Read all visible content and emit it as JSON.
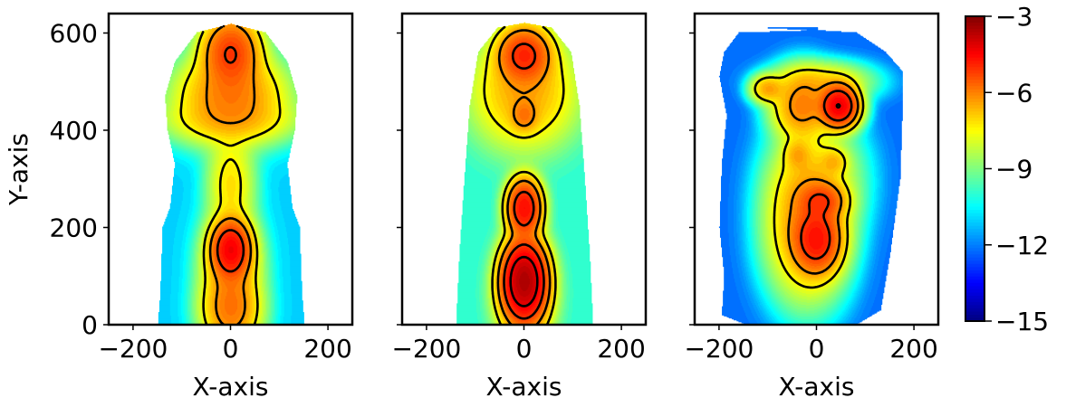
{
  "chart_data": {
    "type": "heatmap",
    "panel_count": 3,
    "shared": {
      "xlim": [
        -250,
        250
      ],
      "ylim": [
        0,
        640
      ],
      "x_ticks": [
        -200,
        0,
        200
      ],
      "x_tick_labels": [
        "−200",
        "0",
        "200"
      ],
      "y_ticks": [
        0,
        200,
        400,
        600
      ],
      "y_tick_labels": [
        "0",
        "200",
        "400",
        "600"
      ],
      "colormap": "jet",
      "colorbar": {
        "range": [
          -15,
          -3
        ],
        "ticks": [
          -3,
          -6,
          -9,
          -12,
          -15
        ],
        "tick_labels": [
          "−3",
          "−6",
          "−9",
          "−12",
          "−15"
        ]
      },
      "contour_color": "#000000"
    },
    "panels": [
      {
        "xlabel": "X-axis",
        "ylabel": "Y-axis",
        "support": [
          [
            0,
            -150
          ],
          [
            60,
            -145
          ],
          [
            200,
            -140
          ],
          [
            240,
            -125
          ],
          [
            330,
            -115
          ],
          [
            400,
            -130
          ],
          [
            470,
            -135
          ],
          [
            540,
            -115
          ],
          [
            600,
            -70
          ],
          [
            618,
            0
          ],
          [
            600,
            70
          ],
          [
            540,
            115
          ],
          [
            470,
            135
          ],
          [
            400,
            130
          ],
          [
            330,
            115
          ],
          [
            240,
            125
          ],
          [
            200,
            140
          ],
          [
            60,
            145
          ],
          [
            0,
            150
          ]
        ],
        "background_value": -11,
        "blobs": [
          {
            "x": 0,
            "y": 560,
            "sx": 30,
            "sy": 38,
            "peak": -5.2
          },
          {
            "x": 0,
            "y": 470,
            "sx": 55,
            "sy": 45,
            "peak": -6.0
          },
          {
            "x": 0,
            "y": 420,
            "sx": 75,
            "sy": 25,
            "peak": -7.4
          },
          {
            "x": 0,
            "y": 290,
            "sx": 25,
            "sy": 55,
            "peak": -7.2
          },
          {
            "x": 0,
            "y": 155,
            "sx": 20,
            "sy": 30,
            "peak": -4.5
          },
          {
            "x": 0,
            "y": 120,
            "sx": 30,
            "sy": 55,
            "peak": -6.4
          },
          {
            "x": 0,
            "y": 30,
            "sx": 30,
            "sy": 40,
            "peak": -6.0
          }
        ]
      },
      {
        "xlabel": "X-axis",
        "ylabel": "",
        "support": [
          [
            0,
            -140
          ],
          [
            150,
            -133
          ],
          [
            300,
            -123
          ],
          [
            450,
            -112
          ],
          [
            560,
            -95
          ],
          [
            610,
            -55
          ],
          [
            620,
            0
          ],
          [
            610,
            55
          ],
          [
            560,
            95
          ],
          [
            450,
            112
          ],
          [
            300,
            123
          ],
          [
            150,
            133
          ],
          [
            0,
            140
          ]
        ],
        "background_value": -10,
        "blobs": [
          {
            "x": 0,
            "y": 555,
            "sx": 28,
            "sy": 30,
            "peak": -5.0
          },
          {
            "x": 0,
            "y": 480,
            "sx": 55,
            "sy": 60,
            "peak": -6.5
          },
          {
            "x": 0,
            "y": 430,
            "sx": 15,
            "sy": 18,
            "peak": -6.2
          },
          {
            "x": 0,
            "y": 240,
            "sx": 18,
            "sy": 30,
            "peak": -4.6
          },
          {
            "x": 0,
            "y": 90,
            "sx": 22,
            "sy": 40,
            "peak": -3.6
          },
          {
            "x": 0,
            "y": 60,
            "sx": 30,
            "sy": 55,
            "peak": -6.3
          }
        ]
      },
      {
        "xlabel": "X-axis",
        "ylabel": "",
        "support": [
          [
            0,
            -145
          ],
          [
            20,
            -195
          ],
          [
            100,
            -190
          ],
          [
            200,
            -200
          ],
          [
            330,
            -195
          ],
          [
            430,
            -185
          ],
          [
            510,
            -200
          ],
          [
            560,
            -190
          ],
          [
            600,
            -160
          ],
          [
            610,
            -100
          ],
          [
            605,
            0
          ],
          [
            600,
            80
          ],
          [
            560,
            140
          ],
          [
            520,
            175
          ],
          [
            450,
            175
          ],
          [
            300,
            170
          ],
          [
            150,
            150
          ],
          [
            30,
            130
          ],
          [
            0,
            80
          ]
        ],
        "background_value": -12.2,
        "blobs": [
          {
            "x": 45,
            "y": 450,
            "sx": 20,
            "sy": 22,
            "peak": -4.3
          },
          {
            "x": -100,
            "y": 485,
            "sx": 18,
            "sy": 15,
            "peak": -6.5
          },
          {
            "x": -30,
            "y": 450,
            "sx": 30,
            "sy": 35,
            "peak": -6.0
          },
          {
            "x": 10,
            "y": 500,
            "sx": 50,
            "sy": 20,
            "peak": -7.2
          },
          {
            "x": 0,
            "y": 175,
            "sx": 25,
            "sy": 35,
            "peak": -4.8
          },
          {
            "x": 10,
            "y": 255,
            "sx": 25,
            "sy": 20,
            "peak": -5.4
          },
          {
            "x": -20,
            "y": 210,
            "sx": 40,
            "sy": 75,
            "peak": -6.2
          },
          {
            "x": -40,
            "y": 350,
            "sx": 15,
            "sy": 18,
            "peak": -6.8
          },
          {
            "x": 35,
            "y": 335,
            "sx": 15,
            "sy": 15,
            "peak": -7.0
          },
          {
            "x": 0,
            "y": 300,
            "sx": 45,
            "sy": 60,
            "peak": -7.5
          }
        ]
      }
    ],
    "contour_levels": [
      -7.5,
      -6.3,
      -5.2,
      -4.3
    ]
  }
}
